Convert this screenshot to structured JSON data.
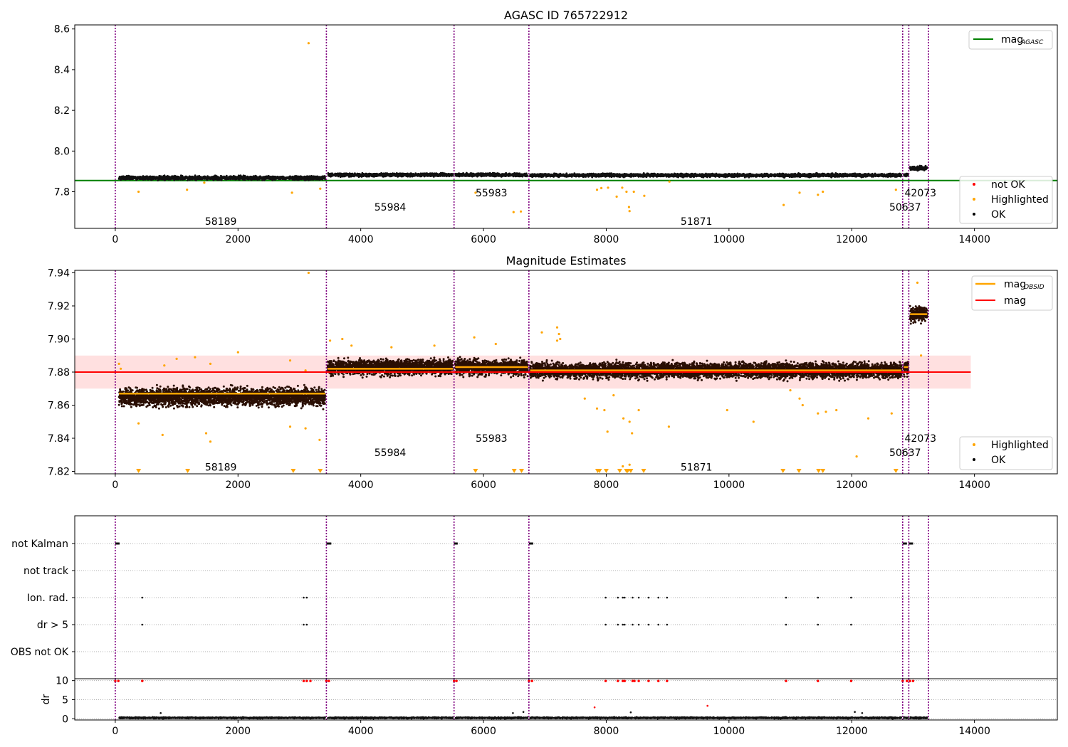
{
  "chart_data": [
    {
      "type": "scatter",
      "title": "AGASC ID 765722912",
      "xlim": [
        -660,
        15350
      ],
      "ylim": [
        7.62,
        8.62
      ],
      "xticks": [
        0,
        2000,
        4000,
        6000,
        8000,
        10000,
        12000,
        14000
      ],
      "yticks": [
        7.8,
        8.0,
        8.2,
        8.4,
        8.6
      ],
      "xlabel": "",
      "ylabel": "",
      "grid": false,
      "legends": [
        {
          "location": "upper right",
          "entries": [
            {
              "label": "mag",
              "subscript": "AGASC",
              "color": "#008000",
              "marker": "line"
            }
          ]
        },
        {
          "location": "lower right",
          "entries": [
            {
              "label": "not OK",
              "color": "#ff0000",
              "marker": "dot"
            },
            {
              "label": "Highlighted",
              "color": "#ffa500",
              "marker": "dot"
            },
            {
              "label": "OK",
              "color": "#000000",
              "marker": "dot"
            }
          ]
        }
      ],
      "hlines": [
        {
          "name": "mag_AGASC",
          "y": 7.855,
          "color": "#008000"
        }
      ],
      "vlines_x": [
        0,
        3440,
        5520,
        6740,
        12830,
        12930,
        13250
      ],
      "segment_labels": [
        {
          "text": "58189",
          "x": 1720,
          "y": 7.655
        },
        {
          "text": "55984",
          "x": 4480,
          "y": 7.725
        },
        {
          "text": "55983",
          "x": 6130,
          "y": 7.795
        },
        {
          "text": "51871",
          "x": 9470,
          "y": 7.655
        },
        {
          "text": "50637",
          "x": 12870,
          "y": 7.725
        },
        {
          "text": "42073",
          "x": 13120,
          "y": 7.795
        }
      ],
      "ok_bands": [
        {
          "x": [
            60,
            3420
          ],
          "y": 7.868,
          "spread": 0.012
        },
        {
          "x": [
            3460,
            5500
          ],
          "y": 7.883,
          "spread": 0.01
        },
        {
          "x": [
            5540,
            6720
          ],
          "y": 7.883,
          "spread": 0.01
        },
        {
          "x": [
            6760,
            12810
          ],
          "y": 7.881,
          "spread": 0.01
        },
        {
          "x": [
            12850,
            12920
          ],
          "y": 7.883,
          "spread": 0.01
        },
        {
          "x": [
            12950,
            13230
          ],
          "y": 7.915,
          "spread": 0.014
        }
      ],
      "highlighted_points": [
        [
          3150,
          8.53
        ],
        [
          380,
          7.8
        ],
        [
          1170,
          7.81
        ],
        [
          2880,
          7.795
        ],
        [
          3340,
          7.815
        ],
        [
          1450,
          7.845
        ],
        [
          5870,
          7.795
        ],
        [
          6490,
          7.7
        ],
        [
          6610,
          7.703
        ],
        [
          7850,
          7.81
        ],
        [
          7920,
          7.818
        ],
        [
          8170,
          7.776
        ],
        [
          8260,
          7.82
        ],
        [
          8330,
          7.8
        ],
        [
          8370,
          7.725
        ],
        [
          8380,
          7.705
        ],
        [
          8450,
          7.8
        ],
        [
          8620,
          7.78
        ],
        [
          10890,
          7.735
        ],
        [
          11150,
          7.795
        ],
        [
          11450,
          7.785
        ],
        [
          11530,
          7.8
        ],
        [
          12720,
          7.81
        ],
        [
          9030,
          7.85
        ],
        [
          8030,
          7.82
        ]
      ]
    },
    {
      "type": "scatter",
      "title": "Magnitude Estimates",
      "xlim": [
        -660,
        15350
      ],
      "ylim": [
        7.8185,
        7.9415
      ],
      "xticks": [
        0,
        2000,
        4000,
        6000,
        8000,
        10000,
        12000,
        14000
      ],
      "yticks": [
        7.82,
        7.84,
        7.86,
        7.88,
        7.9,
        7.92,
        7.94
      ],
      "xlabel": "",
      "ylabel": "",
      "grid": false,
      "legends": [
        {
          "location": "upper right",
          "entries": [
            {
              "label": "mag",
              "subscript": "OBSID",
              "color": "#ffa500",
              "marker": "line"
            },
            {
              "label": "mag",
              "subscript": "",
              "color": "#ff0000",
              "marker": "line"
            }
          ]
        },
        {
          "location": "lower right",
          "entries": [
            {
              "label": "Highlighted",
              "color": "#ffa500",
              "marker": "dot"
            },
            {
              "label": "OK",
              "color": "#000000",
              "marker": "dot"
            }
          ]
        }
      ],
      "hlines": [
        {
          "name": "mag",
          "y": 7.88,
          "color": "#ff0000",
          "x": [
            -660,
            13940
          ]
        }
      ],
      "hband": {
        "y": [
          7.87,
          7.89
        ],
        "x": [
          -660,
          13940
        ],
        "color": "#ff0000",
        "alpha": 0.12
      },
      "obsid_means": [
        {
          "x": [
            60,
            3420
          ],
          "y": 7.867
        },
        {
          "x": [
            3460,
            5500
          ],
          "y": 7.882
        },
        {
          "x": [
            5540,
            6720
          ],
          "y": 7.883
        },
        {
          "x": [
            6760,
            12810
          ],
          "y": 7.881
        },
        {
          "x": [
            12850,
            12920
          ],
          "y": 7.883
        },
        {
          "x": [
            12950,
            13230
          ],
          "y": 7.915
        }
      ],
      "vlines_x": [
        0,
        3440,
        5520,
        6740,
        12830,
        12930,
        13250
      ],
      "segment_labels": [
        {
          "text": "58189",
          "x": 1720,
          "y": 7.8225
        },
        {
          "text": "55984",
          "x": 4480,
          "y": 7.8313
        },
        {
          "text": "55983",
          "x": 6130,
          "y": 7.84
        },
        {
          "text": "51871",
          "x": 9470,
          "y": 7.8225
        },
        {
          "text": "50637",
          "x": 12870,
          "y": 7.8313
        },
        {
          "text": "42073",
          "x": 13120,
          "y": 7.84
        }
      ],
      "ok_bands": [
        {
          "x": [
            60,
            3420
          ],
          "y": 7.865,
          "spread": 0.007
        },
        {
          "x": [
            3460,
            5500
          ],
          "y": 7.883,
          "spread": 0.006
        },
        {
          "x": [
            5540,
            6720
          ],
          "y": 7.883,
          "spread": 0.006
        },
        {
          "x": [
            6760,
            12810
          ],
          "y": 7.881,
          "spread": 0.006
        },
        {
          "x": [
            12850,
            12920
          ],
          "y": 7.883,
          "spread": 0.006
        },
        {
          "x": [
            12950,
            13230
          ],
          "y": 7.915,
          "spread": 0.006
        }
      ],
      "highlighted_points": [
        [
          3150,
          7.94
        ],
        [
          60,
          7.885
        ],
        [
          90,
          7.882
        ],
        [
          800,
          7.884
        ],
        [
          1000,
          7.888
        ],
        [
          1300,
          7.889
        ],
        [
          1550,
          7.885
        ],
        [
          2000,
          7.892
        ],
        [
          2850,
          7.887
        ],
        [
          3100,
          7.881
        ],
        [
          380,
          7.849
        ],
        [
          770,
          7.842
        ],
        [
          1480,
          7.843
        ],
        [
          1550,
          7.838
        ],
        [
          2850,
          7.847
        ],
        [
          3100,
          7.846
        ],
        [
          3330,
          7.839
        ],
        [
          3500,
          7.899
        ],
        [
          3700,
          7.9
        ],
        [
          3850,
          7.896
        ],
        [
          5850,
          7.901
        ],
        [
          4500,
          7.895
        ],
        [
          5200,
          7.896
        ],
        [
          6200,
          7.897
        ],
        [
          6950,
          7.904
        ],
        [
          7200,
          7.907
        ],
        [
          7230,
          7.903
        ],
        [
          7250,
          7.9
        ],
        [
          7200,
          7.899
        ],
        [
          7650,
          7.864
        ],
        [
          7850,
          7.858
        ],
        [
          7970,
          7.857
        ],
        [
          8020,
          7.844
        ],
        [
          8120,
          7.866
        ],
        [
          8280,
          7.852
        ],
        [
          8380,
          7.85
        ],
        [
          8420,
          7.843
        ],
        [
          8530,
          7.857
        ],
        [
          9020,
          7.847
        ],
        [
          9970,
          7.857
        ],
        [
          10400,
          7.85
        ],
        [
          11000,
          7.869
        ],
        [
          11200,
          7.86
        ],
        [
          11150,
          7.864
        ],
        [
          11450,
          7.855
        ],
        [
          11580,
          7.856
        ],
        [
          11750,
          7.857
        ],
        [
          12080,
          7.829
        ],
        [
          12270,
          7.852
        ],
        [
          12650,
          7.855
        ],
        [
          13070,
          7.934
        ],
        [
          13130,
          7.89
        ],
        [
          8270,
          7.823
        ],
        [
          8380,
          7.824
        ]
      ],
      "clipped_markers_x": [
        380,
        1180,
        2900,
        3340,
        5870,
        6500,
        6620,
        7860,
        7890,
        8000,
        8220,
        8330,
        8350,
        8400,
        8610,
        10880,
        11140,
        11460,
        11530,
        12720
      ]
    },
    {
      "type": "scatter",
      "title": "",
      "xlim": [
        -660,
        15350
      ],
      "categories": [
        "not Kalman",
        "not track",
        "Ion. rad.",
        "dr > 5",
        "OBS not OK"
      ],
      "grid": "y-dotted",
      "vlines_x": [
        0,
        3440,
        5520,
        6740,
        12830,
        12930,
        13250
      ],
      "flags": {
        "not Kalman": [
          [
            0,
            70
          ],
          [
            3440,
            3520
          ],
          [
            5520,
            5580
          ],
          [
            6740,
            6810
          ],
          [
            12830,
            12900
          ],
          [
            12930,
            13000
          ]
        ],
        "not track": [],
        "Ion. rad.": [
          440,
          3070,
          3120,
          7990,
          8190,
          8270,
          8300,
          8430,
          8530,
          8690,
          8850,
          8990,
          10930,
          11450,
          11990
        ],
        "dr > 5": [
          440,
          3070,
          3120,
          7990,
          8190,
          8270,
          8300,
          8430,
          8530,
          8690,
          8850,
          8990,
          10930,
          11450,
          11990
        ],
        "OBS not OK": []
      }
    },
    {
      "type": "scatter",
      "title": "",
      "xlim": [
        -660,
        15350
      ],
      "ylim": [
        -0.3,
        10.5
      ],
      "xticks": [
        0,
        2000,
        4000,
        6000,
        8000,
        10000,
        12000,
        14000
      ],
      "yticks": [
        0,
        5,
        10
      ],
      "xlabel": "",
      "ylabel": "dr",
      "grid": "y-dotted",
      "vlines_x": [
        0,
        3440,
        5520,
        6740,
        12830,
        12930,
        13250
      ],
      "clipped_dr_x": [
        0,
        50,
        440,
        3070,
        3120,
        3180,
        3440,
        3480,
        5520,
        5560,
        6740,
        6790,
        7990,
        8190,
        8270,
        8300,
        8430,
        8460,
        8530,
        8690,
        8850,
        8990,
        10930,
        11450,
        11990,
        12830,
        12900,
        12950,
        13000
      ],
      "outliers": [
        [
          740,
          1.5
        ],
        [
          6480,
          1.5
        ],
        [
          6650,
          1.8
        ],
        [
          7810,
          3.0
        ],
        [
          8400,
          1.7
        ],
        [
          9650,
          3.4
        ],
        [
          12050,
          1.8
        ],
        [
          12170,
          1.5
        ]
      ],
      "baseline": {
        "segments": [
          [
            60,
            3420
          ],
          [
            3460,
            5500
          ],
          [
            5540,
            6720
          ],
          [
            6760,
            12810
          ],
          [
            12850,
            12920
          ],
          [
            12950,
            13230
          ]
        ],
        "level": 0.25
      }
    }
  ]
}
